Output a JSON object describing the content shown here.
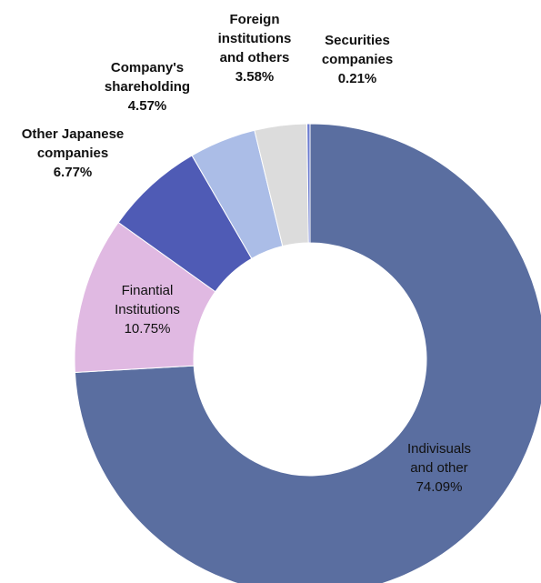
{
  "chart_data": {
    "type": "donut",
    "categories": [
      "Indivisuals\nand other",
      "Finantial\nInstitutions",
      "Other Japanese\ncompanies",
      "Company's\nshareholding",
      "Foreign\ninstitutions\nand others",
      "Securities\ncompanies"
    ],
    "values": [
      74.09,
      10.75,
      6.77,
      4.57,
      3.58,
      0.21
    ],
    "value_labels": [
      "74.09%",
      "10.75%",
      "6.77%",
      "4.57%",
      "3.58%",
      "0.21%"
    ],
    "colors": [
      "#5a6ea0",
      "#e0b9e2",
      "#4f5bb5",
      "#abbde7",
      "#dcdcdc",
      "#6b7bd0"
    ]
  }
}
